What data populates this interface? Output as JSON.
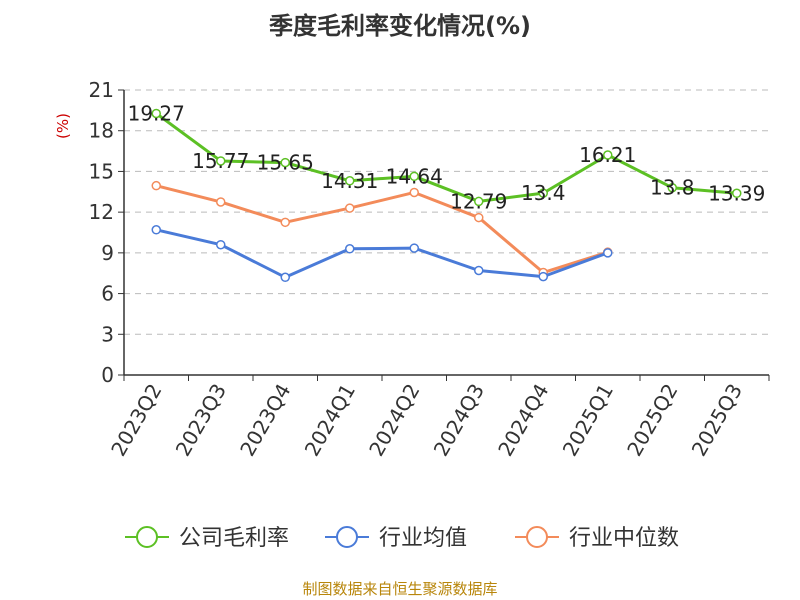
{
  "title": "季度毛利率变化情况(%)",
  "source": "制图数据来自恒生聚源数据库",
  "colors": {
    "company": "#5cc024",
    "industry_avg": "#4a7bd8",
    "industry_median": "#f38b5a",
    "grid": "#bbbbbb",
    "axis": "#333333",
    "unit": "#cc0000",
    "source": "#b8860b"
  },
  "chart_data": {
    "type": "line",
    "title": "季度毛利率变化情况(%)",
    "ylabel": "(%)",
    "xlabel": "",
    "ylim": [
      0,
      21
    ],
    "yticks": [
      0,
      3,
      6,
      9,
      12,
      15,
      18,
      21
    ],
    "grid": true,
    "legend_position": "bottom",
    "categories": [
      "2023Q2",
      "2023Q3",
      "2023Q4",
      "2024Q1",
      "2024Q2",
      "2024Q3",
      "2024Q4",
      "2025Q1",
      "2025Q2",
      "2025Q3"
    ],
    "series": [
      {
        "name": "公司毛利率",
        "color": "#5cc024",
        "values": [
          19.27,
          15.77,
          15.65,
          14.31,
          14.64,
          12.79,
          13.4,
          16.21,
          13.8,
          13.39
        ],
        "labels": [
          "19.27",
          "15.77",
          "15.65",
          "14.31",
          "14.64",
          "12.79",
          "13.4",
          "16.21",
          "13.8",
          "13.39"
        ]
      },
      {
        "name": "行业均值",
        "color": "#4a7bd8",
        "values": [
          10.7,
          9.6,
          7.2,
          9.3,
          9.35,
          7.7,
          7.25,
          9.0,
          null,
          null
        ]
      },
      {
        "name": "行业中位数",
        "color": "#f38b5a",
        "values": [
          13.95,
          12.75,
          11.25,
          12.3,
          13.45,
          11.6,
          7.55,
          9.05,
          null,
          null
        ]
      }
    ]
  }
}
